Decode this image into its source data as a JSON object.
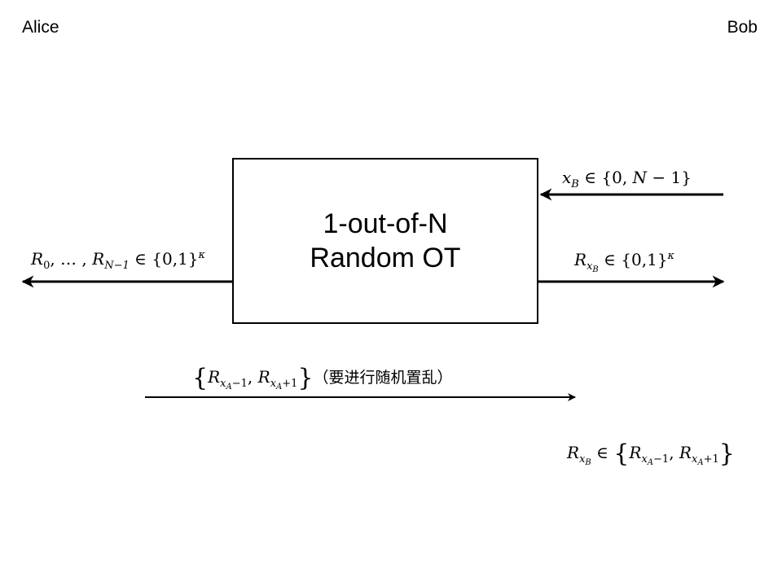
{
  "parties": {
    "alice": "Alice",
    "bob": "Bob"
  },
  "ot_box": {
    "line1": "1-out-of-N",
    "line2": "Random OT"
  },
  "labels": {
    "bob_input": {
      "var": "x",
      "sub": "B",
      "rest": " ∈ {0, ",
      "n": "N",
      "tail": " − 1}"
    },
    "alice_output": {
      "r0": "R",
      "r0_sub": "0",
      "mid": ", … , ",
      "rn": "R",
      "rn_sub": "N−1",
      "set": " ∈ {0,1}",
      "sup": "κ"
    },
    "bob_output": {
      "r": "R",
      "sub_x": "x",
      "sub_b": "B",
      "set": " ∈ {0,1}",
      "sup": "κ"
    },
    "pair_message": {
      "open": "{",
      "r1": "R",
      "r1_x": "x",
      "r1_a": "A",
      "r1_off": "−1",
      "comma": ", ",
      "r2": "R",
      "r2_x": "x",
      "r2_a": "A",
      "r2_off": "+1",
      "close": "}",
      "note": "（要进行随机置乱）"
    },
    "bob_result": {
      "r": "R",
      "sub_x": "x",
      "sub_b": "B",
      "in": " ∈ ",
      "open": "{",
      "r1": "R",
      "r1_x": "x",
      "r1_a": "A",
      "r1_off": "−1",
      "comma": ", ",
      "r2": "R",
      "r2_x": "x",
      "r2_a": "A",
      "r2_off": "+1",
      "close": "}"
    }
  }
}
